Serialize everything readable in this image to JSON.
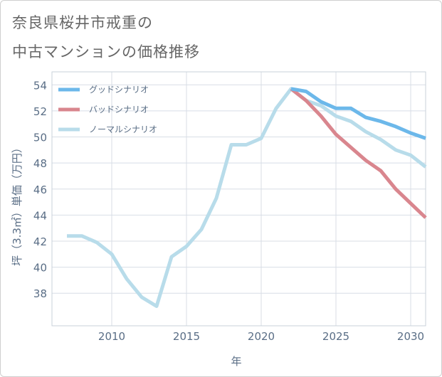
{
  "title_line1": "奈良県桜井市戒重の",
  "title_line2": "中古マンションの価格推移",
  "chart_data": {
    "type": "line",
    "xlabel": "年",
    "ylabel": "坪（3.3㎡）単価（万円）",
    "xlim": [
      2006,
      2031
    ],
    "ylim": [
      35.5,
      55
    ],
    "xticks": [
      2010,
      2015,
      2020,
      2025,
      2030
    ],
    "yticks": [
      38,
      40,
      42,
      44,
      46,
      48,
      50,
      52,
      54
    ],
    "grid": true,
    "legend_position": "top-left",
    "series": [
      {
        "name": "グッドシナリオ",
        "color": "#6cb8ea",
        "x": [
          2022,
          2023,
          2024,
          2025,
          2026,
          2027,
          2028,
          2029,
          2030,
          2031
        ],
        "y": [
          53.7,
          53.5,
          52.7,
          52.2,
          52.2,
          51.5,
          51.2,
          50.8,
          50.3,
          49.9
        ]
      },
      {
        "name": "バッドシナリオ",
        "color": "#d9868e",
        "x": [
          2022,
          2023,
          2024,
          2025,
          2026,
          2027,
          2028,
          2029,
          2030,
          2031
        ],
        "y": [
          53.7,
          52.8,
          51.6,
          50.2,
          49.2,
          48.2,
          47.4,
          46.0,
          44.9,
          43.8
        ]
      },
      {
        "name": "ノーマルシナリオ",
        "color": "#b8dcea",
        "x": [
          2007,
          2008,
          2009,
          2010,
          2011,
          2012,
          2013,
          2014,
          2015,
          2016,
          2017,
          2018,
          2019,
          2020,
          2021,
          2022,
          2023,
          2024,
          2025,
          2026,
          2027,
          2028,
          2029,
          2030,
          2031
        ],
        "y": [
          42.4,
          42.4,
          41.9,
          41.0,
          39.1,
          37.7,
          37.0,
          40.8,
          41.6,
          42.9,
          45.3,
          49.4,
          49.4,
          49.9,
          52.2,
          53.7,
          52.8,
          52.4,
          51.6,
          51.2,
          50.4,
          49.8,
          49.0,
          48.6,
          47.7
        ]
      }
    ]
  }
}
